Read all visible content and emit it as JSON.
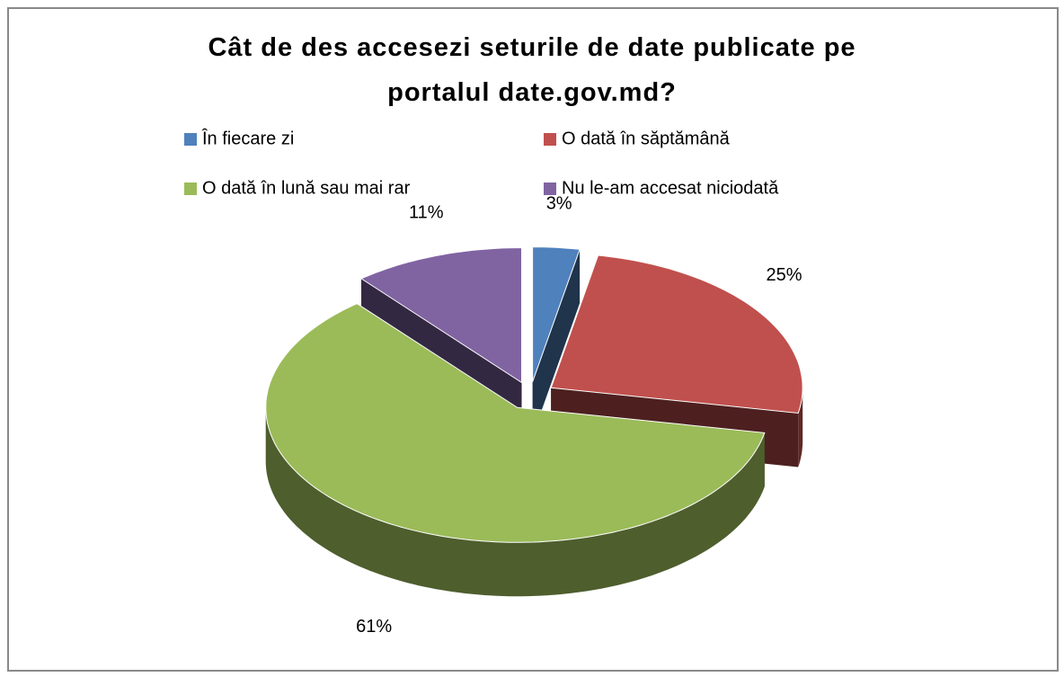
{
  "chart_data": {
    "type": "pie",
    "title": "Cât de des accesezi seturile de date publicate pe portalul date.gov.md?",
    "categories": [
      "În fiecare zi",
      "O dată în săptămână",
      "O dată în lună sau mai rar",
      "Nu le-am accesat niciodată"
    ],
    "values": [
      3,
      25,
      61,
      11
    ],
    "value_labels": [
      "3%",
      "25%",
      "61%",
      "11%"
    ],
    "colors": [
      "#4f81bd",
      "#c0504d",
      "#9bbb59",
      "#8064a2"
    ],
    "legend": "top"
  }
}
